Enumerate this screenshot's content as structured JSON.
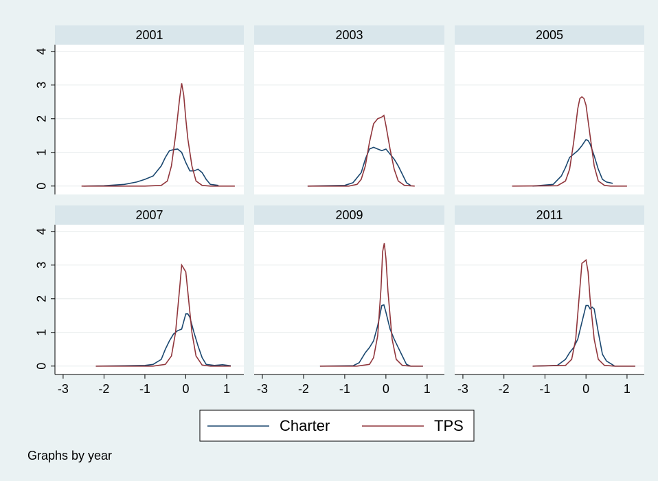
{
  "chart_data": {
    "type": "line",
    "xlim": [
      -3.2,
      1.42
    ],
    "xticks": [
      -3,
      -2,
      -1,
      0,
      1
    ],
    "ylim": [
      -0.25,
      4.2
    ],
    "yticks": [
      0,
      1,
      2,
      3,
      4
    ],
    "legend_position": "bottom",
    "note": "Graphs by year",
    "panels": [
      {
        "title": "2001",
        "series": [
          {
            "name": "Charter",
            "color": "#1a476f",
            "x": [
              -2.5,
              -2,
              -1.5,
              -1.2,
              -1,
              -0.8,
              -0.6,
              -0.5,
              -0.4,
              -0.3,
              -0.2,
              -0.1,
              0,
              0.1,
              0.2,
              0.3,
              0.4,
              0.5,
              0.6,
              0.8
            ],
            "values": [
              0,
              0.01,
              0.05,
              0.12,
              0.2,
              0.3,
              0.6,
              0.85,
              1.05,
              1.08,
              1.1,
              1.0,
              0.7,
              0.45,
              0.45,
              0.5,
              0.4,
              0.2,
              0.05,
              0.02
            ]
          },
          {
            "name": "TPS",
            "color": "#90353b",
            "x": [
              -2.55,
              -1,
              -0.6,
              -0.45,
              -0.35,
              -0.25,
              -0.15,
              -0.1,
              -0.05,
              0,
              0.05,
              0.15,
              0.25,
              0.4,
              0.6,
              1.2
            ],
            "values": [
              0,
              0,
              0.02,
              0.15,
              0.6,
              1.5,
              2.6,
              3.05,
              2.7,
              2.0,
              1.4,
              0.6,
              0.15,
              0.02,
              0,
              0
            ]
          }
        ]
      },
      {
        "title": "2003",
        "series": [
          {
            "name": "Charter",
            "color": "#1a476f",
            "x": [
              -1.9,
              -1,
              -0.8,
              -0.6,
              -0.5,
              -0.4,
              -0.3,
              -0.2,
              -0.1,
              0,
              0.1,
              0.2,
              0.3,
              0.4,
              0.5,
              0.6
            ],
            "values": [
              0,
              0.02,
              0.1,
              0.4,
              0.8,
              1.1,
              1.15,
              1.1,
              1.05,
              1.1,
              0.95,
              0.8,
              0.6,
              0.35,
              0.1,
              0.02
            ]
          },
          {
            "name": "TPS",
            "color": "#90353b",
            "x": [
              -1.9,
              -0.9,
              -0.7,
              -0.6,
              -0.5,
              -0.4,
              -0.3,
              -0.2,
              -0.1,
              -0.05,
              0,
              0.1,
              0.2,
              0.3,
              0.45,
              0.7
            ],
            "values": [
              0,
              0,
              0.05,
              0.2,
              0.6,
              1.3,
              1.85,
              2.0,
              2.05,
              2.1,
              1.8,
              1.1,
              0.5,
              0.15,
              0.02,
              0
            ]
          }
        ]
      },
      {
        "title": "2005",
        "series": [
          {
            "name": "Charter",
            "color": "#1a476f",
            "x": [
              -1.3,
              -0.8,
              -0.6,
              -0.5,
              -0.4,
              -0.3,
              -0.2,
              -0.1,
              0,
              0.05,
              0.1,
              0.2,
              0.3,
              0.4,
              0.5,
              0.65
            ],
            "values": [
              0,
              0.05,
              0.3,
              0.55,
              0.85,
              0.95,
              1.05,
              1.2,
              1.38,
              1.35,
              1.25,
              0.9,
              0.5,
              0.2,
              0.12,
              0.08
            ]
          },
          {
            "name": "TPS",
            "color": "#90353b",
            "x": [
              -1.8,
              -0.7,
              -0.5,
              -0.4,
              -0.3,
              -0.2,
              -0.15,
              -0.1,
              -0.05,
              0,
              0.1,
              0.2,
              0.3,
              0.45,
              0.6,
              1.0
            ],
            "values": [
              0,
              0.01,
              0.15,
              0.5,
              1.3,
              2.3,
              2.6,
              2.65,
              2.6,
              2.4,
              1.5,
              0.6,
              0.15,
              0.02,
              0,
              0
            ]
          }
        ]
      },
      {
        "title": "2007",
        "series": [
          {
            "name": "Charter",
            "color": "#1a476f",
            "x": [
              -2.2,
              -1.5,
              -1,
              -0.8,
              -0.6,
              -0.5,
              -0.4,
              -0.3,
              -0.2,
              -0.1,
              0,
              0.05,
              0.1,
              0.2,
              0.3,
              0.4,
              0.5,
              0.7,
              0.9,
              1.1
            ],
            "values": [
              0,
              0.01,
              0.02,
              0.05,
              0.2,
              0.5,
              0.75,
              0.95,
              1.05,
              1.1,
              1.55,
              1.55,
              1.45,
              1.0,
              0.6,
              0.25,
              0.05,
              0.02,
              0.04,
              0.01
            ]
          },
          {
            "name": "TPS",
            "color": "#90353b",
            "x": [
              -2.2,
              -0.8,
              -0.5,
              -0.35,
              -0.25,
              -0.15,
              -0.1,
              -0.05,
              0,
              0.05,
              0.15,
              0.25,
              0.4,
              0.6,
              1.1
            ],
            "values": [
              0,
              0,
              0.05,
              0.3,
              1.0,
              2.3,
              3.0,
              2.9,
              2.8,
              2.2,
              1.0,
              0.3,
              0.03,
              0,
              0
            ]
          }
        ]
      },
      {
        "title": "2009",
        "series": [
          {
            "name": "Charter",
            "color": "#1a476f",
            "x": [
              -1.6,
              -0.8,
              -0.65,
              -0.5,
              -0.4,
              -0.3,
              -0.2,
              -0.1,
              -0.05,
              0,
              0.1,
              0.2,
              0.3,
              0.4,
              0.5,
              0.6,
              0.9
            ],
            "values": [
              0,
              0.01,
              0.1,
              0.4,
              0.55,
              0.75,
              1.2,
              1.8,
              1.82,
              1.6,
              1.1,
              0.8,
              0.55,
              0.3,
              0.05,
              0,
              0
            ]
          },
          {
            "name": "TPS",
            "color": "#90353b",
            "x": [
              -1.6,
              -0.7,
              -0.4,
              -0.3,
              -0.2,
              -0.12,
              -0.08,
              -0.04,
              0,
              0.05,
              0.15,
              0.25,
              0.4,
              0.6,
              0.9
            ],
            "values": [
              0,
              0,
              0.05,
              0.25,
              0.9,
              2.3,
              3.4,
              3.65,
              3.2,
              2.2,
              0.8,
              0.2,
              0.02,
              0,
              0
            ]
          }
        ]
      },
      {
        "title": "2011",
        "series": [
          {
            "name": "Charter",
            "color": "#1a476f",
            "x": [
              -1.3,
              -0.7,
              -0.5,
              -0.4,
              -0.3,
              -0.2,
              -0.1,
              0,
              0.05,
              0.1,
              0.15,
              0.2,
              0.3,
              0.4,
              0.5,
              0.7,
              1.2
            ],
            "values": [
              0,
              0.02,
              0.2,
              0.4,
              0.55,
              0.8,
              1.3,
              1.8,
              1.8,
              1.7,
              1.75,
              1.7,
              1.0,
              0.35,
              0.15,
              0,
              0
            ]
          },
          {
            "name": "TPS",
            "color": "#90353b",
            "x": [
              -1.3,
              -0.5,
              -0.35,
              -0.25,
              -0.15,
              -0.1,
              -0.05,
              0,
              0.05,
              0.1,
              0.2,
              0.3,
              0.45,
              0.7,
              1.2
            ],
            "values": [
              0,
              0.02,
              0.2,
              0.8,
              2.3,
              3.05,
              3.1,
              3.15,
              2.8,
              2.0,
              0.8,
              0.2,
              0.02,
              0,
              0
            ]
          }
        ]
      }
    ]
  }
}
